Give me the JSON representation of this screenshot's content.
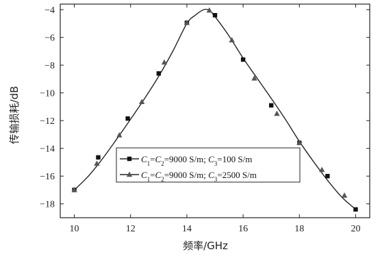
{
  "chart_data": {
    "type": "line",
    "xlabel": "频率/GHz",
    "ylabel": "传输损耗/dB",
    "xlim": [
      9.5,
      20.5
    ],
    "ylim": [
      -19,
      -3.6
    ],
    "xticks": [
      10,
      12,
      14,
      16,
      18,
      20
    ],
    "yticks": [
      -4,
      -6,
      -8,
      -10,
      -12,
      -14,
      -16,
      -18
    ],
    "xtick_labels": [
      "10",
      "12",
      "14",
      "16",
      "18",
      "20"
    ],
    "ytick_labels": [
      "−4",
      "−6",
      "−8",
      "−10",
      "−12",
      "−14",
      "−16",
      "−18"
    ],
    "legend_position": "lower-left",
    "curve": {
      "x": [
        10.0,
        10.5,
        11.0,
        11.5,
        12.0,
        12.5,
        13.0,
        13.5,
        14.0,
        14.3,
        14.6,
        14.8,
        15.0,
        15.5,
        16.0,
        16.5,
        17.0,
        17.5,
        18.0,
        18.5,
        19.0,
        19.5,
        20.0
      ],
      "y": [
        -17.0,
        -16.0,
        -14.75,
        -13.35,
        -11.9,
        -10.4,
        -8.8,
        -7.0,
        -5.0,
        -4.4,
        -4.0,
        -4.05,
        -4.5,
        -5.9,
        -7.5,
        -8.95,
        -10.4,
        -11.9,
        -13.5,
        -14.95,
        -16.3,
        -17.5,
        -18.4
      ]
    },
    "series": [
      {
        "name": "C₁=C₂=9000 S/m; C₃=100 S/m",
        "legend_parts": [
          {
            "t": "C",
            "s": "i"
          },
          {
            "t": "1",
            "s": "sub"
          },
          {
            "t": "=",
            "s": "n"
          },
          {
            "t": "C",
            "s": "i"
          },
          {
            "t": "2",
            "s": "sub"
          },
          {
            "t": "=9000 S/m; ",
            "s": "n"
          },
          {
            "t": "C",
            "s": "i"
          },
          {
            "t": "3",
            "s": "sub"
          },
          {
            "t": "=100 S/m",
            "s": "n"
          }
        ],
        "marker": "square",
        "color": "#111111",
        "x": [
          10.0,
          10.85,
          11.9,
          13.0,
          14.0,
          15.0,
          16.0,
          17.0,
          18.0,
          19.0,
          20.0
        ],
        "y": [
          -17.0,
          -14.65,
          -11.85,
          -8.6,
          -4.95,
          -4.4,
          -7.6,
          -10.9,
          -13.6,
          -16.0,
          -18.4
        ]
      },
      {
        "name": "C₁=C₂=9000 S/m; C₃=2500 S/m",
        "legend_parts": [
          {
            "t": "C",
            "s": "i"
          },
          {
            "t": "1",
            "s": "sub"
          },
          {
            "t": "=",
            "s": "n"
          },
          {
            "t": "C",
            "s": "i"
          },
          {
            "t": "2",
            "s": "sub"
          },
          {
            "t": "=9000 S/m; ",
            "s": "n"
          },
          {
            "t": "C",
            "s": "i"
          },
          {
            "t": "3",
            "s": "sub"
          },
          {
            "t": "=2500 S/m",
            "s": "n"
          }
        ],
        "marker": "triangle",
        "color": "#555555",
        "x": [
          10.0,
          10.8,
          11.6,
          12.4,
          13.2,
          14.0,
          14.8,
          15.6,
          16.4,
          17.2,
          18.0,
          18.8,
          19.6
        ],
        "y": [
          -17.0,
          -15.1,
          -13.05,
          -10.65,
          -7.8,
          -4.95,
          -4.05,
          -6.2,
          -8.95,
          -11.5,
          -13.6,
          -15.55,
          -17.4
        ]
      }
    ]
  }
}
